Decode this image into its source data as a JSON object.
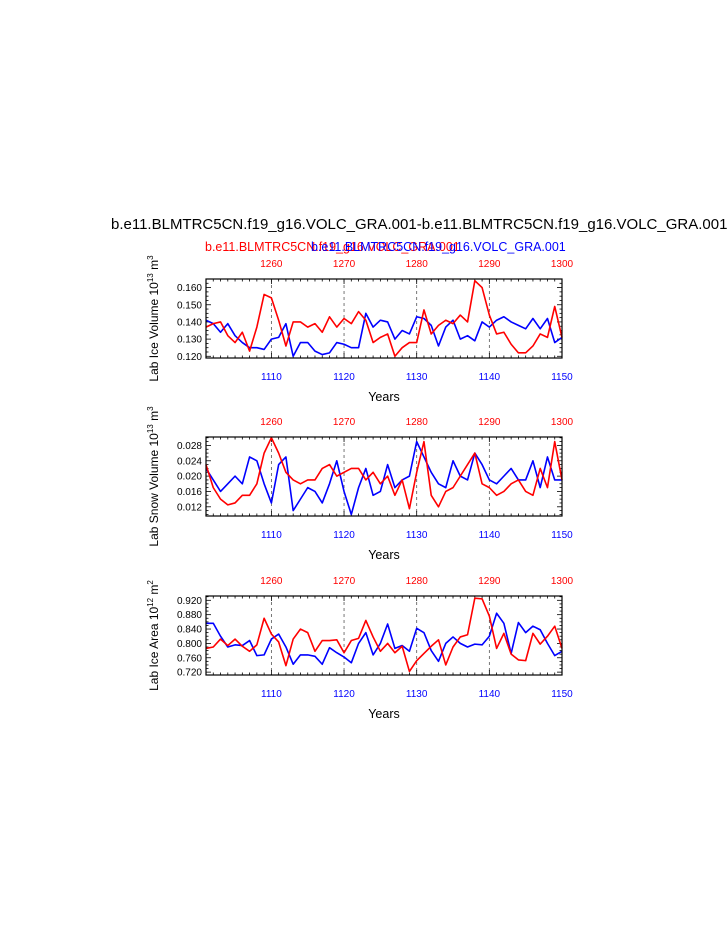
{
  "title": "b.e11.BLMTRC5CN.f19_g16.VOLC_GRA.001-b.e11.BLMTRC5CN.f19_g16.VOLC_GRA.001",
  "legend": {
    "red_run": "b.e11.BLMTRC5CN.f19_g16.VOLC_GRA.001",
    "blue_run": "b.e11.BLMTRC5CN.f19_g16.VOLC_GRA.001"
  },
  "colors": {
    "red": "#ff0000",
    "blue": "#0000ff",
    "axis": "#000000",
    "grid": "#555555"
  },
  "chart_data": [
    {
      "type": "line",
      "ylabel": "Lab Ice Volume 10^13 m^3",
      "xlabel": "Years",
      "ylim": [
        0.119,
        0.165
      ],
      "yticks": [
        0.12,
        0.13,
        0.14,
        0.15,
        0.16
      ],
      "ytick_labels": [
        "0.120",
        "0.130",
        "0.140",
        "0.150",
        "0.160"
      ],
      "bottom_axis": {
        "color": "#0000ff",
        "range": [
          1101,
          1150
        ],
        "ticks": [
          1110,
          1120,
          1130,
          1140,
          1150
        ]
      },
      "top_axis": {
        "color": "#ff0000",
        "range": [
          1251,
          1300
        ],
        "ticks": [
          1260,
          1270,
          1280,
          1290,
          1300
        ]
      },
      "grid_x": [
        1110,
        1120,
        1130,
        1140
      ],
      "series": [
        {
          "color": "#0000ff",
          "x_start": 1101,
          "values": [
            0.141,
            0.139,
            0.134,
            0.139,
            0.132,
            0.128,
            0.125,
            0.125,
            0.124,
            0.13,
            0.131,
            0.139,
            0.12,
            0.128,
            0.128,
            0.123,
            0.121,
            0.122,
            0.128,
            0.127,
            0.125,
            0.125,
            0.145,
            0.137,
            0.141,
            0.14,
            0.13,
            0.135,
            0.133,
            0.143,
            0.142,
            0.138,
            0.126,
            0.137,
            0.141,
            0.13,
            0.132,
            0.129,
            0.14,
            0.137,
            0.141,
            0.143,
            0.14,
            0.138,
            0.136,
            0.142,
            0.136,
            0.142,
            0.128,
            0.131
          ]
        },
        {
          "color": "#ff0000",
          "x_start": 1251,
          "values": [
            0.137,
            0.139,
            0.14,
            0.132,
            0.128,
            0.134,
            0.123,
            0.137,
            0.156,
            0.154,
            0.141,
            0.126,
            0.14,
            0.14,
            0.137,
            0.139,
            0.134,
            0.143,
            0.137,
            0.142,
            0.139,
            0.146,
            0.141,
            0.128,
            0.131,
            0.133,
            0.12,
            0.125,
            0.128,
            0.128,
            0.147,
            0.133,
            0.138,
            0.141,
            0.139,
            0.144,
            0.14,
            0.164,
            0.16,
            0.144,
            0.133,
            0.134,
            0.127,
            0.122,
            0.122,
            0.126,
            0.133,
            0.131,
            0.149,
            0.131
          ]
        }
      ]
    },
    {
      "type": "line",
      "ylabel": "Lab Snow Volume 10^13 m^3",
      "xlabel": "Years",
      "ylim": [
        0.0096,
        0.0302
      ],
      "yticks": [
        0.012,
        0.016,
        0.02,
        0.024,
        0.028
      ],
      "ytick_labels": [
        "0.012",
        "0.016",
        "0.020",
        "0.024",
        "0.028"
      ],
      "bottom_axis": {
        "color": "#0000ff",
        "range": [
          1101,
          1150
        ],
        "ticks": [
          1110,
          1120,
          1130,
          1140,
          1150
        ]
      },
      "top_axis": {
        "color": "#ff0000",
        "range": [
          1251,
          1300
        ],
        "ticks": [
          1260,
          1270,
          1280,
          1290,
          1300
        ]
      },
      "grid_x": [
        1110,
        1120,
        1130,
        1140
      ],
      "series": [
        {
          "color": "#0000ff",
          "x_start": 1101,
          "values": [
            0.022,
            0.019,
            0.016,
            0.018,
            0.02,
            0.018,
            0.025,
            0.024,
            0.018,
            0.013,
            0.023,
            0.025,
            0.011,
            0.014,
            0.017,
            0.016,
            0.013,
            0.018,
            0.024,
            0.016,
            0.01,
            0.017,
            0.022,
            0.015,
            0.016,
            0.023,
            0.017,
            0.019,
            0.02,
            0.029,
            0.025,
            0.021,
            0.018,
            0.017,
            0.024,
            0.02,
            0.019,
            0.026,
            0.023,
            0.019,
            0.018,
            0.02,
            0.022,
            0.019,
            0.019,
            0.024,
            0.017,
            0.025,
            0.019,
            0.019
          ]
        },
        {
          "color": "#ff0000",
          "x_start": 1251,
          "values": [
            0.023,
            0.017,
            0.014,
            0.0125,
            0.013,
            0.015,
            0.015,
            0.018,
            0.026,
            0.03,
            0.026,
            0.021,
            0.019,
            0.018,
            0.019,
            0.019,
            0.022,
            0.023,
            0.02,
            0.021,
            0.022,
            0.022,
            0.019,
            0.021,
            0.018,
            0.02,
            0.015,
            0.019,
            0.0115,
            0.021,
            0.029,
            0.015,
            0.012,
            0.016,
            0.017,
            0.02,
            0.023,
            0.026,
            0.018,
            0.017,
            0.015,
            0.016,
            0.018,
            0.019,
            0.016,
            0.015,
            0.022,
            0.017,
            0.029,
            0.019
          ]
        }
      ]
    },
    {
      "type": "line",
      "ylabel": "Lab Ice Area 10^12 m^2",
      "xlabel": "Years",
      "ylim": [
        0.712,
        0.932
      ],
      "yticks": [
        0.72,
        0.76,
        0.8,
        0.84,
        0.88,
        0.92
      ],
      "ytick_labels": [
        "0.720",
        "0.760",
        "0.800",
        "0.840",
        "0.880",
        "0.920"
      ],
      "bottom_axis": {
        "color": "#0000ff",
        "range": [
          1101,
          1150
        ],
        "ticks": [
          1110,
          1120,
          1130,
          1140,
          1150
        ]
      },
      "top_axis": {
        "color": "#ff0000",
        "range": [
          1251,
          1300
        ],
        "ticks": [
          1260,
          1270,
          1280,
          1290,
          1300
        ]
      },
      "grid_x": [
        1110,
        1120,
        1130,
        1140
      ],
      "series": [
        {
          "color": "#0000ff",
          "x_start": 1101,
          "values": [
            0.856,
            0.856,
            0.82,
            0.79,
            0.796,
            0.794,
            0.808,
            0.766,
            0.768,
            0.812,
            0.826,
            0.79,
            0.742,
            0.768,
            0.768,
            0.764,
            0.742,
            0.788,
            0.774,
            0.762,
            0.746,
            0.8,
            0.83,
            0.768,
            0.8,
            0.854,
            0.786,
            0.794,
            0.778,
            0.842,
            0.83,
            0.78,
            0.75,
            0.8,
            0.818,
            0.8,
            0.79,
            0.798,
            0.796,
            0.82,
            0.884,
            0.856,
            0.772,
            0.858,
            0.83,
            0.848,
            0.838,
            0.8,
            0.766,
            0.778
          ]
        },
        {
          "color": "#ff0000",
          "x_start": 1251,
          "values": [
            0.786,
            0.79,
            0.812,
            0.794,
            0.812,
            0.792,
            0.778,
            0.796,
            0.87,
            0.826,
            0.804,
            0.738,
            0.812,
            0.84,
            0.83,
            0.778,
            0.808,
            0.808,
            0.81,
            0.774,
            0.808,
            0.814,
            0.864,
            0.818,
            0.778,
            0.8,
            0.774,
            0.792,
            0.722,
            0.752,
            0.772,
            0.792,
            0.81,
            0.74,
            0.79,
            0.818,
            0.824,
            0.926,
            0.924,
            0.876,
            0.786,
            0.828,
            0.77,
            0.754,
            0.752,
            0.828,
            0.798,
            0.82,
            0.848,
            0.786
          ]
        }
      ]
    }
  ]
}
